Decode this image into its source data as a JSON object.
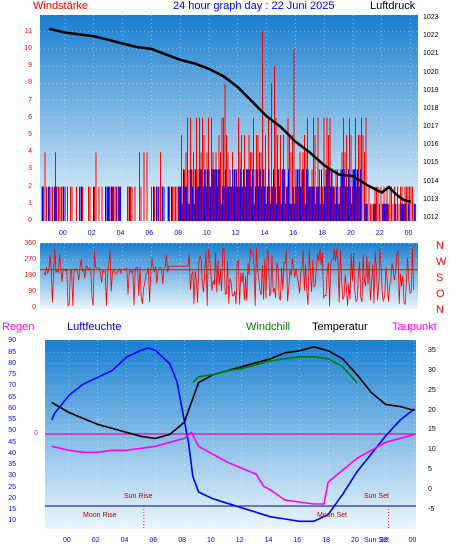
{
  "header": {
    "left_label": "Windstärke",
    "title": "24 hour graph day : 22 Juni 2025",
    "right_label": "Luftdruck"
  },
  "lower_legend": {
    "regen": "Regen",
    "luftfeuchte": "Luftfeuchte",
    "windchill": "Windchill",
    "temperatur": "Temperatur",
    "taupunkt": "Taupunkt"
  },
  "colors": {
    "wind_speed": "#ff0000",
    "wind_avg": "#0000ff",
    "pressure": "#000000",
    "direction": "#ff0000",
    "humidity": "#0000ff",
    "windchill": "#008000",
    "temperature": "#000000",
    "dewpoint": "#ff00ff",
    "rain_zero": "#ff00aa",
    "annotation": "#c00000",
    "sky_top": "#1a7fd0",
    "sky_bottom": "#eaf6fb"
  },
  "chart_data": [
    {
      "type": "line",
      "name_left": "Windstärke",
      "name_right": "Luftdruck",
      "x_tick_labels": [
        "00",
        "02",
        "04",
        "06",
        "08",
        "10",
        "12",
        "14",
        "16",
        "18",
        "20",
        "22",
        "00"
      ],
      "y_left_ticks": [
        "0",
        "1",
        "2",
        "3",
        "4",
        "5",
        "6",
        "7",
        "8",
        "9",
        "10",
        "11"
      ],
      "y_right_ticks": [
        "1012",
        "1013",
        "1014",
        "1015",
        "1016",
        "1017",
        "1018",
        "1019",
        "1020",
        "1021",
        "1022",
        "1023"
      ],
      "wind_max_level": 6,
      "wind_max_peak": 11,
      "wind_avg_level": 3,
      "pressure_series": {
        "x_hours": [
          -1.1,
          0,
          1,
          2,
          3,
          4,
          5,
          6,
          7,
          8,
          9,
          10,
          11,
          12,
          13,
          14,
          15,
          16,
          17,
          18,
          19,
          20,
          21,
          22,
          22.5,
          23,
          23.5,
          24
        ],
        "values": [
          1022.4,
          1022.2,
          1022.1,
          1022.0,
          1021.8,
          1021.6,
          1021.4,
          1021.3,
          1021.0,
          1020.7,
          1020.5,
          1020.2,
          1019.8,
          1019.2,
          1018.4,
          1017.6,
          1017.0,
          1016.2,
          1015.6,
          1014.9,
          1014.4,
          1014.3,
          1013.8,
          1013.4,
          1013.7,
          1013.3,
          1013.0,
          1012.9
        ]
      }
    },
    {
      "type": "scatter",
      "y_left_ticks": [
        "0",
        "90",
        "180",
        "270",
        "360"
      ],
      "y_right_labels": [
        "N",
        "W",
        "S",
        "O",
        "N"
      ],
      "x_tick_labels": [
        "00",
        "02",
        "04",
        "06",
        "08",
        "10",
        "12",
        "14",
        "16",
        "18",
        "20",
        "22",
        "00"
      ],
      "mean_direction": 215
    },
    {
      "type": "line",
      "y_left_ticks": [
        "90",
        "85",
        "80",
        "75",
        "70",
        "65",
        "60",
        "55",
        "50",
        "45",
        "40",
        "35",
        "30",
        "25",
        "20",
        "15",
        "10"
      ],
      "y_right_ticks": [
        "35",
        "30",
        "25",
        "20",
        "15",
        "10",
        "5",
        "0",
        "-5"
      ],
      "rain_zero_label": "0",
      "x_tick_labels": [
        "00",
        "02",
        "04",
        "06",
        "08",
        "10",
        "12",
        "14",
        "16",
        "18",
        "20",
        "22",
        "00"
      ],
      "extra_x_labels": [
        "Sun Set"
      ],
      "annotations": {
        "sun_rise": "Sun Rise",
        "sun_set": "Sun Set",
        "moon_rise": "Moon Rise",
        "moon_set": "Moon Set"
      },
      "series": [
        {
          "name": "Luftfeuchte",
          "x_hours": [
            -1.2,
            -1,
            0,
            1,
            2,
            3,
            4,
            5,
            5.5,
            6,
            7,
            7.5,
            8,
            8.3,
            8.6,
            9,
            10,
            11,
            12,
            13,
            14,
            15,
            16,
            17,
            18,
            19,
            20,
            21,
            22,
            23,
            24
          ],
          "values": [
            55,
            58,
            66,
            71,
            74,
            77,
            83,
            86,
            87,
            86,
            80,
            72,
            55,
            45,
            30,
            23,
            20,
            18,
            16,
            14,
            12,
            11,
            10,
            10,
            13,
            22,
            32,
            40,
            48,
            55,
            60
          ]
        },
        {
          "name": "Temperatur",
          "x_hours": [
            -1.2,
            0,
            1,
            2,
            3,
            4,
            5,
            6,
            7,
            8,
            8.5,
            9,
            10,
            11,
            12,
            13,
            14,
            15,
            16,
            17,
            18,
            19,
            20,
            21,
            22,
            23,
            24
          ],
          "values": [
            22,
            19.5,
            18,
            16.5,
            15.5,
            14.5,
            13.5,
            13,
            14,
            17,
            22,
            27,
            29,
            30,
            31,
            32,
            33,
            34.5,
            35,
            36,
            35,
            33,
            29,
            24.5,
            21.5,
            21,
            20
          ]
        },
        {
          "name": "Windchill",
          "x_hours": [
            8.6,
            9,
            10,
            11,
            12,
            13,
            14,
            15,
            16,
            17,
            18,
            19,
            20
          ],
          "values": [
            27,
            28.5,
            29,
            30,
            30.5,
            31.5,
            32.5,
            33,
            33.5,
            33.5,
            33,
            31,
            27
          ]
        },
        {
          "name": "Taupunkt",
          "x_hours": [
            -1.2,
            0,
            1,
            2,
            3,
            4,
            5,
            6,
            7,
            8,
            8.5,
            9,
            10,
            11,
            12,
            13,
            13.5,
            14,
            15,
            16,
            17,
            17.7,
            18,
            19,
            20,
            21,
            22,
            23,
            24
          ],
          "values": [
            11,
            10,
            9.5,
            9.5,
            10,
            10,
            10.5,
            11,
            12,
            13,
            14.5,
            11,
            9,
            7,
            5.5,
            4,
            1,
            0,
            -2.5,
            -3,
            -3.5,
            -3.5,
            2,
            5,
            8,
            10,
            12,
            13,
            14
          ]
        }
      ]
    }
  ]
}
